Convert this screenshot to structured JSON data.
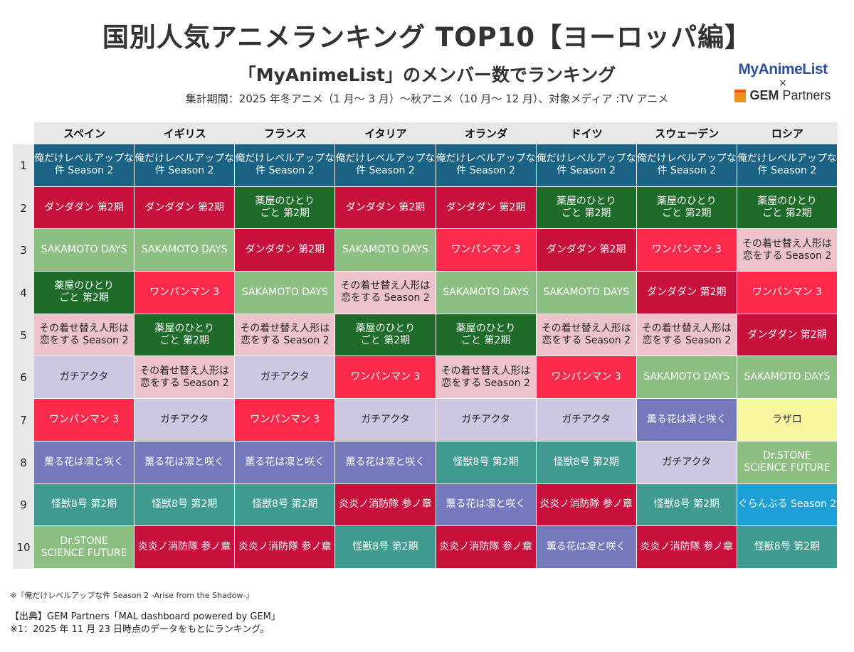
{
  "header": {
    "title": "国別人気アニメランキング TOP10【ヨーロッパ編】",
    "subtitle": "「MyAnimeList」のメンバー数でランキング",
    "period": "集計期間：2025 年冬アニメ（1 月～ 3 月）～秋アニメ（10 月～ 12 月）、対象メディア :TV アニメ"
  },
  "logo": {
    "mal": "MyAnimeList",
    "x": "×",
    "gem_bold": "GEM",
    "gem_rest": "Partners"
  },
  "countries": [
    "スペイン",
    "イギリス",
    "フランス",
    "イタリア",
    "オランダ",
    "ドイツ",
    "スウェーデン",
    "ロシア"
  ],
  "ranks": [
    "1",
    "2",
    "3",
    "4",
    "5",
    "6",
    "7",
    "8",
    "9",
    "10"
  ],
  "titles": {
    "solo": {
      "label": "俺だけレベルアップな\n件 Season 2",
      "color": "#1b6384",
      "text": "#ffffff"
    },
    "dan": {
      "label": "ダンダダン 第2期",
      "color": "#c8103c",
      "text": "#ffffff"
    },
    "kus": {
      "label": "薬屋のひとり\nごと 第2期",
      "color": "#1e6b2a",
      "text": "#ffffff"
    },
    "sak": {
      "label": "SAKAMOTO DAYS",
      "color": "#8dbf82",
      "text": "#ffffff"
    },
    "opm": {
      "label": "ワンパンマン 3",
      "color": "#fe2a4c",
      "text": "#ffffff"
    },
    "bis": {
      "label": "その着せ替え人形は\n恋をする Season 2",
      "color": "#ecc3cb",
      "text": "#222222"
    },
    "gac": {
      "label": "ガチアクタ",
      "color": "#cfc6e1",
      "text": "#222222"
    },
    "kao": {
      "label": "薫る花は凛と咲く",
      "color": "#7479bd",
      "text": "#ffffff"
    },
    "kai": {
      "label": "怪獣8号 第2期",
      "color": "#3f9b8f",
      "text": "#ffffff"
    },
    "enen": {
      "label": "炎炎ノ消防隊 参ノ章",
      "color": "#c8103c",
      "text": "#ffffff"
    },
    "drs": {
      "label": "Dr.STONE\nSCIENCE FUTURE",
      "color": "#8dbf82",
      "text": "#ffffff"
    },
    "laz": {
      "label": "ラザロ",
      "color": "#f7f7a0",
      "text": "#222222"
    },
    "gra": {
      "label": "ぐらんぶる Season 2",
      "color": "#1da0d8",
      "text": "#ffffff"
    }
  },
  "rankings": [
    [
      "solo",
      "solo",
      "solo",
      "solo",
      "solo",
      "solo",
      "solo",
      "solo"
    ],
    [
      "dan",
      "dan",
      "kus",
      "dan",
      "dan",
      "kus",
      "kus",
      "kus"
    ],
    [
      "sak",
      "sak",
      "dan",
      "sak",
      "opm",
      "dan",
      "opm",
      "bis"
    ],
    [
      "kus",
      "opm",
      "sak",
      "bis",
      "sak",
      "sak",
      "dan",
      "opm"
    ],
    [
      "bis",
      "kus",
      "bis",
      "kus",
      "kus",
      "bis",
      "bis",
      "dan"
    ],
    [
      "gac",
      "bis",
      "gac",
      "opm",
      "bis",
      "opm",
      "sak",
      "sak"
    ],
    [
      "opm",
      "gac",
      "opm",
      "gac",
      "gac",
      "gac",
      "kao",
      "laz"
    ],
    [
      "kao",
      "kao",
      "kao",
      "kao",
      "kai",
      "kai",
      "gac",
      "drs"
    ],
    [
      "kai",
      "kai",
      "kai",
      "enen",
      "kao",
      "enen",
      "kai",
      "gra"
    ],
    [
      "drs",
      "enen",
      "enen",
      "kai",
      "enen",
      "kao",
      "enen",
      "kai"
    ]
  ],
  "footer": {
    "note": "※『俺だけレベルアップな件 Season 2 -Arise from the Shadow-』",
    "source": "【出典】GEM Partners「MAL dashboard powered by GEM」",
    "basis": "※1：2025 年 11 月 23 日時点のデータをもとにランキング。"
  }
}
